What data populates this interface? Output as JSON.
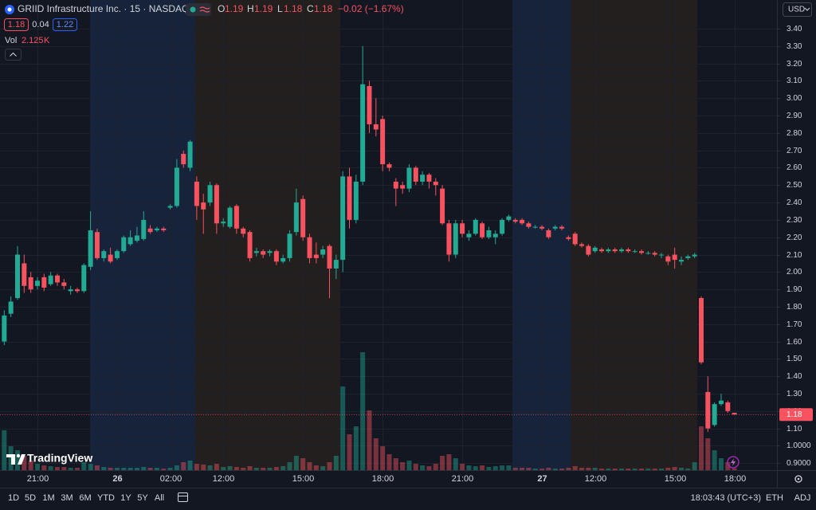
{
  "header": {
    "title": "GRIID Infrastructure Inc. · 15 · NASDAQ",
    "ohlc_labels": [
      "O",
      "H",
      "L",
      "C"
    ],
    "change": "−0.02 (−1.67%)",
    "bid": 1.18,
    "spread": 0.04,
    "ask": 1.22,
    "volume_label": "Vol",
    "volume_unit": "K",
    "logo": "TradingView"
  },
  "toolbar": {
    "ranges": [
      "1D",
      "5D",
      "1M",
      "3M",
      "6M",
      "YTD",
      "1Y",
      "5Y",
      "All"
    ],
    "clock": "18:03:43 (UTC+3)",
    "buttons": [
      "ETH",
      "ADJ"
    ]
  },
  "chart_data": {
    "type": "candlestick",
    "currency": "USD",
    "up_color": "#22ab94",
    "down_color": "#f7525f",
    "categories": [
      null,
      null,
      null,
      null,
      null,
      null,
      "21:00",
      null,
      null,
      null,
      null,
      null,
      null,
      null,
      null,
      null,
      null,
      null,
      "26",
      null,
      null,
      null,
      null,
      null,
      null,
      null,
      "02:00",
      null,
      null,
      null,
      null,
      null,
      null,
      null,
      "12:00",
      null,
      null,
      null,
      null,
      null,
      null,
      null,
      null,
      null,
      null,
      null,
      "15:00",
      null,
      null,
      null,
      null,
      null,
      null,
      null,
      null,
      null,
      null,
      null,
      "18:00",
      null,
      null,
      null,
      null,
      null,
      null,
      null,
      null,
      null,
      null,
      null,
      "21:00",
      null,
      null,
      null,
      null,
      null,
      null,
      null,
      null,
      null,
      null,
      null,
      "27",
      null,
      null,
      null,
      null,
      null,
      null,
      null,
      "12:00",
      null,
      null,
      null,
      null,
      null,
      null,
      null,
      null,
      null,
      null,
      null,
      "15:00",
      null,
      null,
      null,
      null,
      null,
      null,
      null,
      null,
      "18:00"
    ],
    "open": [
      1.52,
      1.6,
      1.76,
      1.85,
      2.05,
      1.97,
      1.92,
      1.97,
      1.93,
      1.98,
      1.94,
      1.89,
      1.9,
      1.89,
      2.03,
      2.23,
      2.08,
      2.1,
      2.08,
      2.12,
      2.16,
      2.18,
      2.19,
      2.25,
      2.24,
      2.25,
      2.37,
      2.38,
      2.68,
      2.6,
      2.52,
      2.4,
      2.4,
      2.5,
      2.28,
      2.26,
      2.38,
      2.25,
      2.23,
      2.11,
      2.12,
      2.11,
      2.12,
      2.06,
      2.08,
      2.23,
      2.42,
      2.2,
      2.1,
      2.1,
      2.15,
      2.02,
      2.07,
      2.55,
      2.3,
      2.52,
      3.07,
      2.85,
      2.88,
      2.62,
      2.52,
      2.5,
      2.48,
      2.6,
      2.52,
      2.56,
      2.52,
      2.48,
      2.28,
      2.1,
      2.28,
      2.2,
      2.22,
      2.28,
      2.2,
      2.2,
      2.22,
      2.3,
      2.3,
      2.3,
      2.28,
      2.26,
      2.26,
      2.24,
      2.25,
      2.26,
      2.2,
      2.22,
      2.16,
      2.15,
      2.12,
      2.13,
      2.12,
      2.13,
      2.12,
      2.13,
      2.12,
      2.12,
      2.11,
      2.11,
      2.1,
      2.09,
      2.1,
      2.06,
      2.08,
      2.09,
      1.85,
      1.31,
      1.12,
      1.24,
      1.25,
      1.19
    ],
    "high": [
      1.62,
      1.78,
      1.86,
      2.15,
      2.1,
      2.0,
      1.97,
      1.99,
      2.0,
      1.99,
      1.96,
      1.92,
      1.91,
      2.05,
      2.35,
      2.25,
      2.13,
      2.14,
      2.13,
      2.21,
      2.24,
      2.26,
      2.35,
      2.27,
      2.26,
      2.26,
      2.39,
      2.65,
      2.7,
      2.76,
      2.55,
      2.45,
      2.52,
      2.51,
      2.31,
      2.38,
      2.39,
      2.26,
      2.24,
      2.14,
      2.13,
      2.13,
      2.13,
      2.1,
      2.24,
      2.48,
      2.44,
      2.22,
      2.17,
      2.15,
      2.16,
      2.1,
      2.58,
      2.6,
      2.56,
      3.3,
      3.1,
      3.0,
      2.9,
      2.63,
      2.54,
      2.52,
      2.62,
      2.61,
      2.58,
      2.57,
      2.54,
      2.5,
      2.3,
      2.3,
      2.3,
      2.24,
      2.31,
      2.29,
      2.26,
      2.24,
      2.31,
      2.33,
      2.31,
      2.31,
      2.29,
      2.27,
      2.27,
      2.25,
      2.27,
      2.27,
      2.21,
      2.23,
      2.17,
      2.16,
      2.15,
      2.14,
      2.14,
      2.14,
      2.14,
      2.14,
      2.13,
      2.13,
      2.12,
      2.12,
      2.11,
      2.1,
      2.14,
      2.09,
      2.1,
      2.11,
      1.86,
      1.4,
      1.25,
      1.3,
      1.26,
      1.19
    ],
    "low": [
      1.5,
      1.58,
      1.74,
      1.84,
      1.88,
      1.88,
      1.9,
      1.89,
      1.92,
      1.92,
      1.9,
      1.87,
      1.88,
      1.88,
      2.01,
      2.07,
      2.06,
      2.05,
      2.07,
      2.11,
      2.15,
      2.17,
      2.18,
      2.22,
      2.23,
      2.23,
      2.36,
      2.37,
      2.6,
      2.58,
      2.3,
      2.22,
      2.38,
      2.22,
      2.26,
      2.25,
      2.22,
      2.2,
      2.06,
      2.09,
      2.08,
      2.09,
      2.04,
      2.05,
      2.06,
      2.21,
      2.18,
      2.05,
      2.05,
      2.08,
      1.85,
      1.96,
      2.0,
      2.25,
      2.28,
      2.5,
      2.8,
      2.78,
      2.58,
      2.58,
      2.38,
      2.45,
      2.46,
      2.5,
      2.5,
      2.48,
      2.44,
      2.27,
      2.06,
      2.08,
      2.2,
      2.18,
      2.21,
      2.19,
      2.19,
      2.16,
      2.21,
      2.29,
      2.28,
      2.27,
      2.25,
      2.25,
      2.24,
      2.19,
      2.24,
      2.24,
      2.18,
      2.15,
      2.14,
      2.09,
      2.11,
      2.11,
      2.11,
      2.11,
      2.11,
      2.11,
      2.11,
      2.1,
      2.1,
      2.09,
      2.08,
      2.04,
      2.02,
      2.04,
      2.07,
      2.08,
      1.47,
      1.08,
      1.11,
      1.23,
      1.19,
      1.18
    ],
    "close": [
      1.6,
      1.75,
      1.83,
      2.1,
      1.92,
      1.9,
      1.95,
      1.91,
      1.98,
      1.94,
      1.92,
      1.9,
      1.89,
      2.04,
      2.24,
      2.08,
      2.12,
      2.06,
      2.12,
      2.2,
      2.2,
      2.21,
      2.3,
      2.23,
      2.25,
      2.24,
      2.38,
      2.6,
      2.62,
      2.75,
      2.38,
      2.36,
      2.5,
      2.28,
      2.29,
      2.37,
      2.25,
      2.22,
      2.08,
      2.12,
      2.1,
      2.12,
      2.06,
      2.08,
      2.22,
      2.4,
      2.2,
      2.08,
      2.08,
      2.13,
      2.02,
      2.07,
      2.55,
      2.3,
      2.52,
      3.08,
      2.85,
      2.82,
      2.62,
      2.6,
      2.48,
      2.48,
      2.6,
      2.52,
      2.56,
      2.52,
      2.5,
      2.28,
      2.1,
      2.28,
      2.22,
      2.22,
      2.3,
      2.2,
      2.24,
      2.22,
      2.3,
      2.32,
      2.29,
      2.28,
      2.26,
      2.26,
      2.25,
      2.2,
      2.26,
      2.25,
      2.19,
      2.16,
      2.15,
      2.1,
      2.14,
      2.12,
      2.13,
      2.12,
      2.13,
      2.12,
      2.12,
      2.11,
      2.11,
      2.1,
      2.1,
      2.06,
      2.07,
      2.07,
      2.09,
      2.1,
      1.48,
      1.1,
      1.24,
      1.26,
      1.2,
      1.18
    ],
    "volume": [
      8,
      50,
      30,
      25,
      18,
      12,
      8,
      6,
      5,
      4,
      4,
      3,
      3,
      10,
      8,
      6,
      4,
      3,
      3,
      3,
      3,
      3,
      4,
      3,
      3,
      2,
      3,
      6,
      10,
      12,
      8,
      7,
      6,
      8,
      4,
      5,
      4,
      3,
      5,
      3,
      3,
      3,
      4,
      5,
      10,
      18,
      15,
      10,
      6,
      5,
      10,
      18,
      105,
      45,
      55,
      148,
      75,
      40,
      30,
      20,
      15,
      10,
      12,
      8,
      6,
      5,
      8,
      18,
      20,
      15,
      8,
      6,
      5,
      6,
      4,
      5,
      6,
      6,
      3,
      3,
      3,
      2,
      2,
      3,
      2,
      2,
      3,
      5,
      3,
      3,
      3,
      2,
      2,
      2,
      2,
      2,
      2,
      2,
      2,
      2,
      2,
      3,
      4,
      3,
      2,
      10,
      55,
      40,
      25,
      15,
      10,
      2.125
    ],
    "ylim": [
      0.86,
      3.565
    ],
    "volume_ylim": [
      0,
      160
    ],
    "yticks": [
      {
        "value": 0.9,
        "label": "0.9000"
      },
      {
        "value": 1.0,
        "label": "1.0000"
      },
      {
        "value": 1.1,
        "label": "1.10"
      },
      {
        "value": 1.2,
        "label": "1.20"
      },
      {
        "value": 1.3,
        "label": "1.30"
      },
      {
        "value": 1.4,
        "label": "1.40"
      },
      {
        "value": 1.5,
        "label": "1.50"
      },
      {
        "value": 1.6,
        "label": "1.60"
      },
      {
        "value": 1.7,
        "label": "1.70"
      },
      {
        "value": 1.8,
        "label": "1.80"
      },
      {
        "value": 1.9,
        "label": "1.90"
      },
      {
        "value": 2.0,
        "label": "2.00"
      },
      {
        "value": 2.1,
        "label": "2.10"
      },
      {
        "value": 2.2,
        "label": "2.20"
      },
      {
        "value": 2.3,
        "label": "2.30"
      },
      {
        "value": 2.4,
        "label": "2.40"
      },
      {
        "value": 2.5,
        "label": "2.50"
      },
      {
        "value": 2.6,
        "label": "2.60"
      },
      {
        "value": 2.7,
        "label": "2.70"
      },
      {
        "value": 2.8,
        "label": "2.80"
      },
      {
        "value": 2.9,
        "label": "2.90"
      },
      {
        "value": 3.0,
        "label": "3.00"
      },
      {
        "value": 3.1,
        "label": "3.10"
      },
      {
        "value": 3.2,
        "label": "3.20"
      },
      {
        "value": 3.3,
        "label": "3.30"
      },
      {
        "value": 3.4,
        "label": "3.40"
      }
    ],
    "grid": true
  }
}
